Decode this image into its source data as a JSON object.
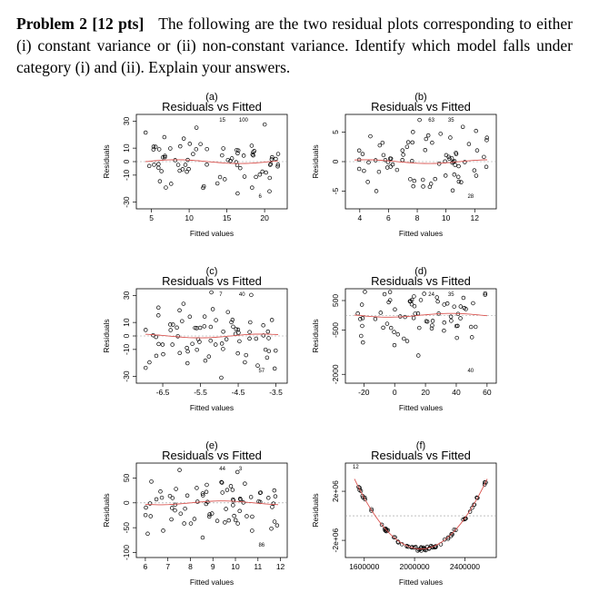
{
  "problem": {
    "heading": "Problem 2 [12 pts]",
    "text": "The following are the two residual plots corresponding to either (i) constant variance or (ii) non-constant variance. Identify which model falls under category (i) and (ii). Explain your answers."
  },
  "colors": {
    "smooth_line": "#d9534f",
    "zero_line": "#999999",
    "points": "#000000"
  },
  "plots": [
    {
      "letter": "(a)",
      "title": "Residuals vs Fitted",
      "xlabel": "Fitted values",
      "ylabel": "Residuals",
      "xticks": [
        "5",
        "10",
        "15",
        "20"
      ],
      "yticks": [
        "-30",
        "-10",
        "0",
        "10",
        "30"
      ],
      "annotations": [
        "15",
        "100",
        "6"
      ],
      "chart_data": {
        "type": "scatter",
        "xlim": [
          3,
          23
        ],
        "ylim": [
          -35,
          35
        ],
        "smooth_shape": "flat",
        "xtick_values": [
          5,
          10,
          15,
          20
        ],
        "ytick_values": [
          -30,
          -10,
          0,
          10,
          30
        ]
      }
    },
    {
      "letter": "(b)",
      "title": "Residuals vs Fitted",
      "xlabel": "Fitted values",
      "ylabel": "Residuals",
      "xticks": [
        "4",
        "6",
        "8",
        "10",
        "12"
      ],
      "yticks": [
        "-5",
        "0",
        "5"
      ],
      "annotations": [
        "63",
        "35",
        "28"
      ],
      "chart_data": {
        "type": "scatter",
        "xlim": [
          3,
          13.5
        ],
        "ylim": [
          -8,
          8
        ],
        "smooth_shape": "flat",
        "xtick_values": [
          4,
          6,
          8,
          10,
          12
        ],
        "ytick_values": [
          -5,
          0,
          5
        ]
      }
    },
    {
      "letter": "(c)",
      "title": "Residuals vs Fitted",
      "xlabel": "Fitted values",
      "ylabel": "Residuals",
      "xticks": [
        "-6.5",
        "-5.5",
        "-4.5",
        "-3.5"
      ],
      "yticks": [
        "-30",
        "-10",
        "0",
        "10",
        "30"
      ],
      "annotations": [
        "7",
        "40",
        "57"
      ],
      "chart_data": {
        "type": "scatter",
        "xlim": [
          -7.2,
          -3.2
        ],
        "ylim": [
          -35,
          35
        ],
        "smooth_shape": "flat",
        "xtick_values": [
          -6.5,
          -5.5,
          -4.5,
          -3.5
        ],
        "ytick_values": [
          -30,
          -10,
          0,
          10,
          30
        ]
      }
    },
    {
      "letter": "(d)",
      "title": "Residuals vs Fitted",
      "xlabel": "Fitted values",
      "ylabel": "Residuals",
      "xticks": [
        "-20",
        "0",
        "20",
        "40",
        "60"
      ],
      "yticks": [
        "-2000",
        "-500",
        "500"
      ],
      "annotations": [
        "24",
        "35",
        "40"
      ],
      "chart_data": {
        "type": "scatter",
        "xlim": [
          -32,
          66
        ],
        "ylim": [
          -2300,
          900
        ],
        "smooth_shape": "flat",
        "xtick_values": [
          -20,
          0,
          20,
          40,
          60
        ],
        "ytick_values": [
          -2000,
          -500,
          500
        ]
      }
    },
    {
      "letter": "(e)",
      "title": "Residuals vs Fitted",
      "xlabel": "Fitted values",
      "ylabel": "Residuals",
      "xticks": [
        "6",
        "7",
        "8",
        "9",
        "10",
        "11",
        "12"
      ],
      "yticks": [
        "-100",
        "-50",
        "0",
        "50"
      ],
      "annotations": [
        "44",
        "3",
        "86"
      ],
      "chart_data": {
        "type": "scatter",
        "xlim": [
          5.6,
          12.3
        ],
        "ylim": [
          -110,
          80
        ],
        "smooth_shape": "flat",
        "xtick_values": [
          6,
          7,
          8,
          9,
          10,
          11,
          12
        ],
        "ytick_values": [
          -100,
          -50,
          0,
          50
        ]
      }
    },
    {
      "letter": "(f)",
      "title": "Residuals vs Fitted",
      "xlabel": "Fitted values",
      "ylabel": "Residuals",
      "xticks": [
        "1600000",
        "2000000",
        "2400000"
      ],
      "yticks": [
        "-2e+06",
        "2e+06"
      ],
      "annotations": [
        "12"
      ],
      "chart_data": {
        "type": "scatter",
        "xlim": [
          1450000,
          2650000
        ],
        "ylim": [
          -3400000,
          4300000
        ],
        "smooth_shape": "u-curve",
        "xtick_values": [
          1600000,
          2000000,
          2400000
        ],
        "ytick_values": [
          -2000000,
          2000000
        ]
      }
    }
  ]
}
